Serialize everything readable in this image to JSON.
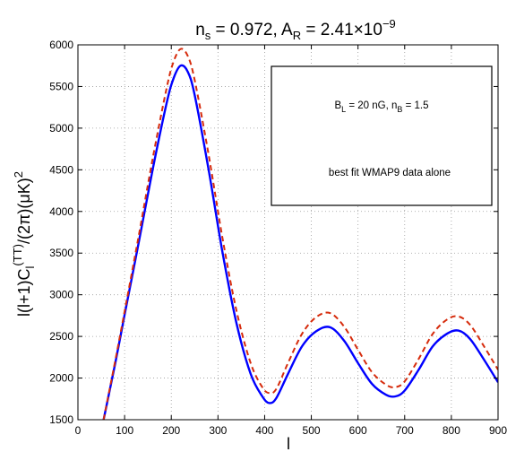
{
  "title": {
    "ns_sym": "n",
    "ns_sub": "s",
    "ns_val": " = 0.972,  ",
    "ar_sym": "A",
    "ar_sub": "R",
    "ar_val": " = 2.41×10",
    "ar_exp": "−9"
  },
  "legend": {
    "line1_b": "B",
    "line1_b_sub": "L",
    "line1_mid": " = 20 nG,  n",
    "line1_n_sub": "B",
    "line1_end": " = 1.5",
    "line2": "best fit WMAP9 data alone"
  },
  "labels": {
    "xlabel": "l",
    "ylabel_a": "l(l+1)C",
    "ylabel_sub": "l",
    "ylabel_sup": "(TT)",
    "ylabel_b": "/(2π)(μK)",
    "ylabel_sq": "2"
  },
  "colors": {
    "series_solid": "#0000ff",
    "series_dashed": "#d62b0c",
    "grid": "#9a9a9a"
  },
  "chart_data": {
    "type": "line",
    "xlim": [
      0,
      900
    ],
    "ylim": [
      1500,
      6000
    ],
    "xticks": [
      0,
      100,
      200,
      300,
      400,
      500,
      600,
      700,
      800,
      900
    ],
    "yticks": [
      1500,
      2000,
      2500,
      3000,
      3500,
      4000,
      4500,
      5000,
      5500,
      6000
    ],
    "grid": true,
    "legend_position": "top-right",
    "series": [
      {
        "style": "solid",
        "color": "#0000ff",
        "x": [
          55,
          80,
          100,
          130,
          160,
          190,
          205,
          220,
          235,
          250,
          280,
          310,
          340,
          370,
          395,
          410,
          425,
          450,
          480,
          510,
          540,
          570,
          600,
          630,
          660,
          680,
          700,
          730,
          760,
          790,
          815,
          840,
          870,
          900
        ],
        "y": [
          1500,
          2180,
          2760,
          3620,
          4500,
          5300,
          5600,
          5750,
          5680,
          5400,
          4500,
          3500,
          2650,
          2050,
          1780,
          1700,
          1760,
          2050,
          2380,
          2560,
          2610,
          2450,
          2180,
          1930,
          1800,
          1780,
          1850,
          2100,
          2380,
          2530,
          2570,
          2470,
          2220,
          1950
        ]
      },
      {
        "style": "dashed",
        "color": "#d62b0c",
        "x": [
          55,
          80,
          100,
          130,
          160,
          190,
          205,
          220,
          235,
          250,
          280,
          310,
          340,
          370,
          395,
          410,
          425,
          450,
          480,
          510,
          540,
          570,
          600,
          630,
          660,
          680,
          700,
          730,
          760,
          790,
          815,
          840,
          870,
          900
        ],
        "y": [
          1500,
          2210,
          2800,
          3700,
          4630,
          5480,
          5800,
          5950,
          5870,
          5580,
          4680,
          3670,
          2800,
          2180,
          1890,
          1820,
          1870,
          2180,
          2530,
          2730,
          2780,
          2620,
          2340,
          2070,
          1920,
          1890,
          1960,
          2230,
          2530,
          2700,
          2740,
          2640,
          2380,
          2100
        ]
      }
    ]
  }
}
